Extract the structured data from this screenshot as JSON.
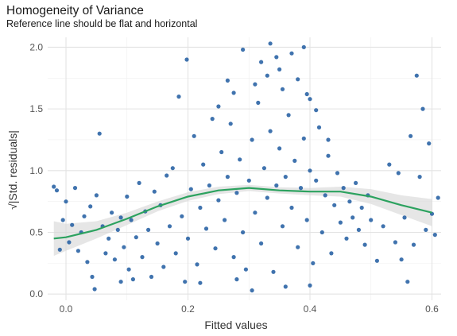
{
  "chart_data": {
    "type": "scatter",
    "title": "Homogeneity of Variance",
    "subtitle": "Reference line should be flat and horizontal",
    "xlabel": "Fitted values",
    "ylabel": "√|Std. residuals|",
    "xlim": [
      -0.03,
      0.615
    ],
    "ylim": [
      -0.05,
      2.08
    ],
    "xticks": [
      0.0,
      0.2,
      0.4,
      0.6
    ],
    "xtick_labels": [
      "0.0",
      "0.2",
      "0.4",
      "0.6"
    ],
    "yticks": [
      0.0,
      0.5,
      1.0,
      1.5,
      2.0
    ],
    "ytick_labels": [
      "0.0",
      "0.5",
      "1.0",
      "1.5",
      "2.0"
    ],
    "grid": true,
    "point_color": "#1f5aa0",
    "smooth_color": "#2ca25f",
    "band_color": "#d9d9d9",
    "points": [
      {
        "x": -0.02,
        "y": 0.87
      },
      {
        "x": -0.015,
        "y": 0.84
      },
      {
        "x": -0.01,
        "y": 0.36
      },
      {
        "x": -0.005,
        "y": 0.6
      },
      {
        "x": 0.0,
        "y": 0.75
      },
      {
        "x": 0.005,
        "y": 0.42
      },
      {
        "x": 0.01,
        "y": 0.56
      },
      {
        "x": 0.015,
        "y": 0.86
      },
      {
        "x": 0.02,
        "y": 0.35
      },
      {
        "x": 0.025,
        "y": 0.5
      },
      {
        "x": 0.03,
        "y": 0.63
      },
      {
        "x": 0.035,
        "y": 0.26
      },
      {
        "x": 0.04,
        "y": 0.71
      },
      {
        "x": 0.043,
        "y": 0.14
      },
      {
        "x": 0.047,
        "y": 0.04
      },
      {
        "x": 0.05,
        "y": 0.8
      },
      {
        "x": 0.055,
        "y": 1.3
      },
      {
        "x": 0.06,
        "y": 0.55
      },
      {
        "x": 0.065,
        "y": 0.33
      },
      {
        "x": 0.07,
        "y": 0.45
      },
      {
        "x": 0.075,
        "y": 0.66
      },
      {
        "x": 0.08,
        "y": 0.28
      },
      {
        "x": 0.085,
        "y": 0.52
      },
      {
        "x": 0.09,
        "y": 0.62
      },
      {
        "x": 0.095,
        "y": 0.38
      },
      {
        "x": 0.1,
        "y": 0.79
      },
      {
        "x": 0.103,
        "y": 0.2
      },
      {
        "x": 0.107,
        "y": 0.6
      },
      {
        "x": 0.11,
        "y": 0.12
      },
      {
        "x": 0.115,
        "y": 0.46
      },
      {
        "x": 0.12,
        "y": 0.9
      },
      {
        "x": 0.125,
        "y": 0.3
      },
      {
        "x": 0.13,
        "y": 0.67
      },
      {
        "x": 0.135,
        "y": 0.52
      },
      {
        "x": 0.14,
        "y": 0.14
      },
      {
        "x": 0.145,
        "y": 0.83
      },
      {
        "x": 0.15,
        "y": 0.41
      },
      {
        "x": 0.155,
        "y": 0.72
      },
      {
        "x": 0.16,
        "y": 0.22
      },
      {
        "x": 0.165,
        "y": 0.96
      },
      {
        "x": 0.17,
        "y": 0.55
      },
      {
        "x": 0.175,
        "y": 1.02
      },
      {
        "x": 0.18,
        "y": 0.33
      },
      {
        "x": 0.185,
        "y": 1.6
      },
      {
        "x": 0.19,
        "y": 0.63
      },
      {
        "x": 0.195,
        "y": 0.1
      },
      {
        "x": 0.198,
        "y": 1.9
      },
      {
        "x": 0.2,
        "y": 0.45
      },
      {
        "x": 0.205,
        "y": 0.85
      },
      {
        "x": 0.21,
        "y": 1.28
      },
      {
        "x": 0.215,
        "y": 0.24
      },
      {
        "x": 0.22,
        "y": 0.7
      },
      {
        "x": 0.225,
        "y": 1.05
      },
      {
        "x": 0.23,
        "y": 0.53
      },
      {
        "x": 0.235,
        "y": 0.88
      },
      {
        "x": 0.24,
        "y": 1.42
      },
      {
        "x": 0.245,
        "y": 0.37
      },
      {
        "x": 0.25,
        "y": 0.76
      },
      {
        "x": 0.255,
        "y": 1.15
      },
      {
        "x": 0.26,
        "y": 0.6
      },
      {
        "x": 0.265,
        "y": 0.95
      },
      {
        "x": 0.27,
        "y": 1.38
      },
      {
        "x": 0.275,
        "y": 0.3
      },
      {
        "x": 0.28,
        "y": 0.82
      },
      {
        "x": 0.285,
        "y": 1.09
      },
      {
        "x": 0.29,
        "y": 0.5
      },
      {
        "x": 0.295,
        "y": 0.2
      },
      {
        "x": 0.3,
        "y": 0.92
      },
      {
        "x": 0.305,
        "y": 1.25
      },
      {
        "x": 0.31,
        "y": 0.66
      },
      {
        "x": 0.315,
        "y": 1.55
      },
      {
        "x": 0.32,
        "y": 0.41
      },
      {
        "x": 0.325,
        "y": 1.02
      },
      {
        "x": 0.33,
        "y": 0.78
      },
      {
        "x": 0.335,
        "y": 1.32
      },
      {
        "x": 0.34,
        "y": 0.18
      },
      {
        "x": 0.345,
        "y": 0.88
      },
      {
        "x": 0.35,
        "y": 1.18
      },
      {
        "x": 0.355,
        "y": 0.55
      },
      {
        "x": 0.36,
        "y": 0.95
      },
      {
        "x": 0.365,
        "y": 1.45
      },
      {
        "x": 0.37,
        "y": 0.7
      },
      {
        "x": 0.375,
        "y": 1.08
      },
      {
        "x": 0.38,
        "y": 0.38
      },
      {
        "x": 0.385,
        "y": 0.86
      },
      {
        "x": 0.39,
        "y": 1.26
      },
      {
        "x": 0.395,
        "y": 0.6
      },
      {
        "x": 0.4,
        "y": 1.0
      },
      {
        "x": 0.405,
        "y": 0.25
      },
      {
        "x": 0.41,
        "y": 0.92
      },
      {
        "x": 0.415,
        "y": 1.35
      },
      {
        "x": 0.42,
        "y": 0.5
      },
      {
        "x": 0.425,
        "y": 0.8
      },
      {
        "x": 0.43,
        "y": 1.12
      },
      {
        "x": 0.435,
        "y": 0.33
      },
      {
        "x": 0.44,
        "y": 0.72
      },
      {
        "x": 0.445,
        "y": 0.98
      },
      {
        "x": 0.45,
        "y": 0.58
      },
      {
        "x": 0.455,
        "y": 0.86
      },
      {
        "x": 0.46,
        "y": 0.45
      },
      {
        "x": 0.465,
        "y": 0.75
      },
      {
        "x": 0.47,
        "y": 0.62
      },
      {
        "x": 0.475,
        "y": 0.9
      },
      {
        "x": 0.48,
        "y": 0.52
      },
      {
        "x": 0.485,
        "y": 0.7
      },
      {
        "x": 0.49,
        "y": 0.4
      },
      {
        "x": 0.495,
        "y": 0.8
      },
      {
        "x": 0.5,
        "y": 0.6
      },
      {
        "x": 0.51,
        "y": 0.27
      },
      {
        "x": 0.52,
        "y": 0.55
      },
      {
        "x": 0.53,
        "y": 1.05
      },
      {
        "x": 0.54,
        "y": 0.42
      },
      {
        "x": 0.545,
        "y": 0.98
      },
      {
        "x": 0.55,
        "y": 0.28
      },
      {
        "x": 0.555,
        "y": 0.62
      },
      {
        "x": 0.56,
        "y": 0.1
      },
      {
        "x": 0.565,
        "y": 1.28
      },
      {
        "x": 0.57,
        "y": 0.4
      },
      {
        "x": 0.575,
        "y": 1.77
      },
      {
        "x": 0.58,
        "y": 0.95
      },
      {
        "x": 0.585,
        "y": 1.5
      },
      {
        "x": 0.59,
        "y": 0.52
      },
      {
        "x": 0.595,
        "y": 1.22
      },
      {
        "x": 0.6,
        "y": 0.65
      },
      {
        "x": 0.605,
        "y": 0.48
      },
      {
        "x": 0.61,
        "y": 0.78
      },
      {
        "x": 0.305,
        "y": 0.03
      },
      {
        "x": 0.335,
        "y": 2.03
      },
      {
        "x": 0.39,
        "y": 2.0
      },
      {
        "x": 0.29,
        "y": 1.98
      },
      {
        "x": 0.37,
        "y": 1.95
      },
      {
        "x": 0.345,
        "y": 1.92
      },
      {
        "x": 0.32,
        "y": 1.88
      },
      {
        "x": 0.35,
        "y": 1.82
      },
      {
        "x": 0.33,
        "y": 1.77
      },
      {
        "x": 0.38,
        "y": 1.74
      },
      {
        "x": 0.31,
        "y": 1.7
      },
      {
        "x": 0.355,
        "y": 1.66
      },
      {
        "x": 0.395,
        "y": 1.62
      },
      {
        "x": 0.265,
        "y": 1.73
      },
      {
        "x": 0.4,
        "y": 1.58
      },
      {
        "x": 0.41,
        "y": 1.49
      },
      {
        "x": 0.275,
        "y": 1.63
      },
      {
        "x": 0.36,
        "y": 0.06
      },
      {
        "x": 0.28,
        "y": 0.12
      },
      {
        "x": 0.4,
        "y": 0.07
      },
      {
        "x": 0.22,
        "y": 0.09
      },
      {
        "x": 0.09,
        "y": 0.1
      },
      {
        "x": 0.25,
        "y": 1.52
      },
      {
        "x": 0.43,
        "y": 1.25
      }
    ],
    "smooth": [
      {
        "x": -0.02,
        "y": 0.45
      },
      {
        "x": 0.0,
        "y": 0.46
      },
      {
        "x": 0.05,
        "y": 0.52
      },
      {
        "x": 0.1,
        "y": 0.61
      },
      {
        "x": 0.15,
        "y": 0.71
      },
      {
        "x": 0.2,
        "y": 0.79
      },
      {
        "x": 0.25,
        "y": 0.84
      },
      {
        "x": 0.3,
        "y": 0.86
      },
      {
        "x": 0.35,
        "y": 0.84
      },
      {
        "x": 0.4,
        "y": 0.83
      },
      {
        "x": 0.45,
        "y": 0.83
      },
      {
        "x": 0.5,
        "y": 0.79
      },
      {
        "x": 0.55,
        "y": 0.72
      },
      {
        "x": 0.6,
        "y": 0.66
      }
    ],
    "band_halfwidth": [
      0.14,
      0.11,
      0.07,
      0.05,
      0.04,
      0.035,
      0.03,
      0.025,
      0.025,
      0.03,
      0.04,
      0.06,
      0.08,
      0.11
    ]
  }
}
